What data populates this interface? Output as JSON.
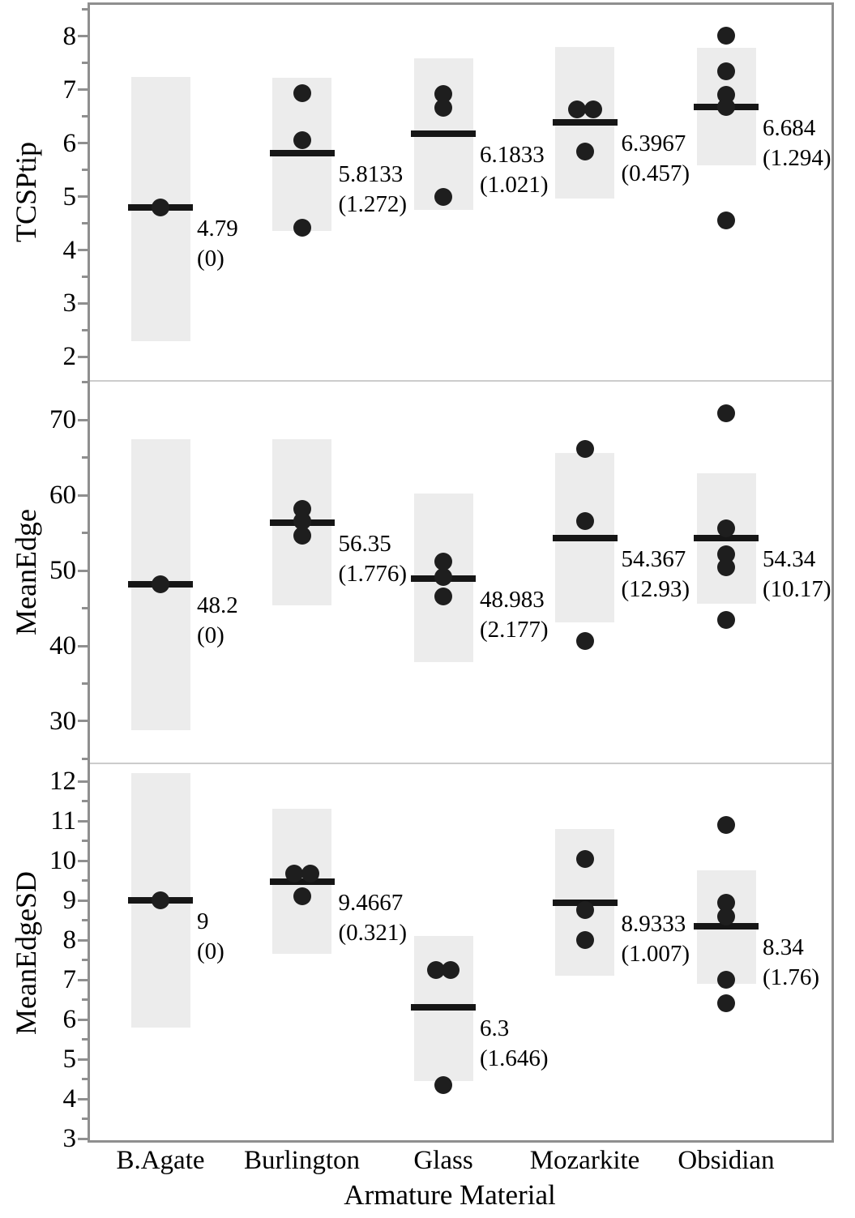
{
  "chart_data": {
    "type": "scatter",
    "title": "",
    "xlabel": "Armature Material",
    "categories": [
      "B.Agate",
      "Burlington",
      "Glass",
      "Mozarkite",
      "Obsidian"
    ],
    "legend": "none",
    "grid": false,
    "colors": {
      "box_fill": "#ececec",
      "mean_line": "#161616",
      "point": "#1e1e1e",
      "frame": "#8f8f8f",
      "separator": "#cccccc",
      "text": "#000000"
    },
    "panels": [
      {
        "ylabel": "TCSPtip",
        "ylim": [
          1.55,
          8.62
        ],
        "yticks": [
          8,
          7,
          6,
          5,
          4,
          3,
          2
        ],
        "yminorticks": [
          8.5,
          7.5,
          6.5,
          5.5,
          4.5,
          3.5,
          2.5
        ],
        "groups": [
          {
            "category": "B.Agate",
            "mean": 4.79,
            "sd": 0,
            "mean_text": "4.79",
            "sd_text": "(0)",
            "box_low": 2.3,
            "box_high": 7.24,
            "points": [
              [
                4.79,
                0
              ]
            ]
          },
          {
            "category": "Burlington",
            "mean": 5.8133,
            "sd": 1.272,
            "mean_text": "5.8133",
            "sd_text": "(1.272)",
            "box_low": 4.35,
            "box_high": 7.22,
            "points": [
              [
                6.93,
                0
              ],
              [
                6.05,
                0
              ],
              [
                4.42,
                0
              ]
            ]
          },
          {
            "category": "Glass",
            "mean": 6.1833,
            "sd": 1.021,
            "mean_text": "6.1833",
            "sd_text": "(1.021)",
            "box_low": 4.75,
            "box_high": 7.59,
            "points": [
              [
                6.92,
                0
              ],
              [
                6.66,
                0
              ],
              [
                5.0,
                0
              ]
            ]
          },
          {
            "category": "Mozarkite",
            "mean": 6.3967,
            "sd": 0.457,
            "mean_text": "6.3967",
            "sd_text": "(0.457)",
            "box_low": 4.96,
            "box_high": 7.8,
            "points": [
              [
                6.63,
                -10
              ],
              [
                6.63,
                10
              ],
              [
                5.85,
                0
              ]
            ]
          },
          {
            "category": "Obsidian",
            "mean": 6.684,
            "sd": 1.294,
            "mean_text": "6.684",
            "sd_text": "(1.294)",
            "box_low": 5.58,
            "box_high": 7.79,
            "points": [
              [
                8.01,
                0
              ],
              [
                7.34,
                0
              ],
              [
                6.9,
                0
              ],
              [
                6.68,
                0
              ],
              [
                4.55,
                0
              ]
            ]
          }
        ]
      },
      {
        "ylabel": "MeanEdge",
        "ylim": [
          24.4,
          75.2
        ],
        "yticks": [
          70,
          60,
          50,
          40,
          30
        ],
        "yminorticks": [
          75,
          65,
          55,
          45,
          35,
          25
        ],
        "groups": [
          {
            "category": "B.Agate",
            "mean": 48.2,
            "sd": 0,
            "mean_text": "48.2",
            "sd_text": "(0)",
            "box_low": 28.8,
            "box_high": 67.5,
            "points": [
              [
                48.2,
                0
              ]
            ]
          },
          {
            "category": "Burlington",
            "mean": 56.35,
            "sd": 1.776,
            "mean_text": "56.35",
            "sd_text": "(1.776)",
            "box_low": 45.4,
            "box_high": 67.4,
            "points": [
              [
                58.2,
                0
              ],
              [
                56.6,
                0
              ],
              [
                54.6,
                0
              ]
            ]
          },
          {
            "category": "Glass",
            "mean": 48.983,
            "sd": 2.177,
            "mean_text": "48.983",
            "sd_text": "(2.177)",
            "box_low": 37.8,
            "box_high": 60.2,
            "points": [
              [
                51.2,
                0
              ],
              [
                49.2,
                0
              ],
              [
                46.6,
                0
              ]
            ]
          },
          {
            "category": "Mozarkite",
            "mean": 54.367,
            "sd": 12.93,
            "mean_text": "54.367",
            "sd_text": "(12.93)",
            "box_low": 43.1,
            "box_high": 65.6,
            "points": [
              [
                66.2,
                0
              ],
              [
                56.6,
                0
              ],
              [
                40.6,
                0
              ]
            ]
          },
          {
            "category": "Obsidian",
            "mean": 54.34,
            "sd": 10.17,
            "mean_text": "54.34",
            "sd_text": "(10.17)",
            "box_low": 45.6,
            "box_high": 62.9,
            "points": [
              [
                70.9,
                0
              ],
              [
                55.6,
                0
              ],
              [
                52.2,
                0
              ],
              [
                50.4,
                0
              ],
              [
                43.5,
                0
              ]
            ]
          }
        ]
      },
      {
        "ylabel": "MeanEdgeSD",
        "ylim": [
          2.9,
          12.45
        ],
        "yticks": [
          12,
          11,
          10,
          9,
          8,
          7,
          6,
          5,
          4,
          3
        ],
        "yminorticks": [
          11.5,
          10.5,
          9.5,
          8.5,
          7.5,
          6.5,
          5.5,
          4.5,
          3.5
        ],
        "groups": [
          {
            "category": "B.Agate",
            "mean": 9,
            "sd": 0,
            "mean_text": "9",
            "sd_text": "(0)",
            "box_low": 5.8,
            "box_high": 12.2,
            "points": [
              [
                9,
                0
              ]
            ]
          },
          {
            "category": "Burlington",
            "mean": 9.4667,
            "sd": 0.321,
            "mean_text": "9.4667",
            "sd_text": "(0.321)",
            "box_low": 7.65,
            "box_high": 11.3,
            "points": [
              [
                9.67,
                -10
              ],
              [
                9.67,
                10
              ],
              [
                9.1,
                0
              ]
            ]
          },
          {
            "category": "Glass",
            "mean": 6.3,
            "sd": 1.646,
            "mean_text": "6.3",
            "sd_text": "(1.646)",
            "box_low": 4.45,
            "box_high": 8.1,
            "points": [
              [
                7.24,
                -9
              ],
              [
                7.24,
                9
              ],
              [
                4.35,
                0
              ]
            ]
          },
          {
            "category": "Mozarkite",
            "mean": 8.9333,
            "sd": 1.007,
            "mean_text": "8.9333",
            "sd_text": "(1.007)",
            "box_low": 7.1,
            "box_high": 10.8,
            "points": [
              [
                10.05,
                0
              ],
              [
                8.76,
                0
              ],
              [
                8.0,
                0
              ]
            ]
          },
          {
            "category": "Obsidian",
            "mean": 8.34,
            "sd": 1.76,
            "mean_text": "8.34",
            "sd_text": "(1.76)",
            "box_low": 6.9,
            "box_high": 9.75,
            "points": [
              [
                10.9,
                0
              ],
              [
                8.95,
                0
              ],
              [
                8.6,
                0
              ],
              [
                7.0,
                0
              ],
              [
                6.4,
                0
              ]
            ]
          }
        ]
      }
    ]
  }
}
